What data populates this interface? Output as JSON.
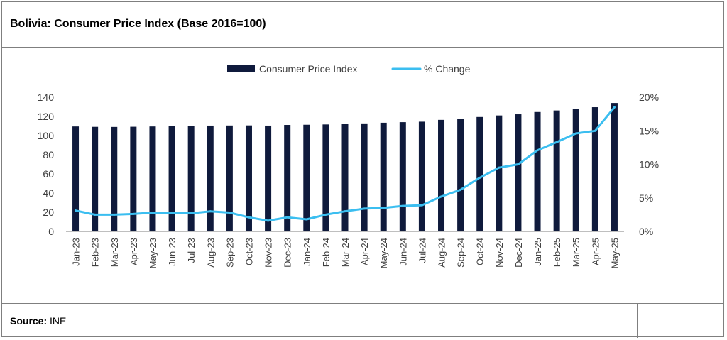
{
  "header": {
    "title": "Bolivia: Consumer Price Index (Base 2016=100)"
  },
  "footer": {
    "source_label": "Source:",
    "source_value": " INE"
  },
  "chart_data": {
    "type": "bar",
    "categories": [
      "Jan-23",
      "Feb-23",
      "Mar-23",
      "Apr-23",
      "May-23",
      "Jun-23",
      "Jul-23",
      "Aug-23",
      "Sep-23",
      "Oct-23",
      "Nov-23",
      "Dec-23",
      "Jan-24",
      "Feb-24",
      "Mar-24",
      "Apr-24",
      "May-24",
      "Jun-24",
      "Jul-24",
      "Aug-24",
      "Sep-24",
      "Oct-24",
      "Nov-24",
      "Dec-24",
      "Jan-25",
      "Feb-25",
      "Mar-25",
      "Apr-25",
      "May-25"
    ],
    "series": [
      {
        "name": "Consumer Price Index",
        "type": "bar",
        "axis": "left",
        "color": "#0f1a3c",
        "values": [
          109.5,
          109.1,
          109.0,
          109.2,
          109.5,
          109.8,
          110.1,
          110.4,
          110.5,
          110.6,
          110.4,
          111.1,
          111.3,
          111.6,
          112.1,
          112.7,
          113.4,
          114.0,
          114.5,
          116.4,
          117.3,
          119.4,
          121.0,
          122.2,
          124.6,
          126.2,
          127.9,
          129.6,
          134.0
        ]
      },
      {
        "name": "% Change",
        "type": "line",
        "axis": "right",
        "color": "#3bbef0",
        "values": [
          3.1,
          2.5,
          2.5,
          2.6,
          2.8,
          2.7,
          2.7,
          3.0,
          2.8,
          2.1,
          1.6,
          2.1,
          1.8,
          2.5,
          3.0,
          3.4,
          3.5,
          3.8,
          3.9,
          5.2,
          6.2,
          8.0,
          9.5,
          10.0,
          12.1,
          13.3,
          14.6,
          15.0,
          18.5
        ]
      }
    ],
    "y_left": {
      "min": 0,
      "max": 140,
      "ticks": [
        0,
        20,
        40,
        60,
        80,
        100,
        120,
        140
      ],
      "tick_labels": [
        "0",
        "20",
        "40",
        "60",
        "80",
        "100",
        "120",
        "140"
      ]
    },
    "y_right": {
      "min": 0,
      "max": 20,
      "ticks": [
        0,
        5,
        10,
        15,
        20
      ],
      "tick_labels": [
        "0%",
        "5%",
        "10%",
        "15%",
        "20%"
      ]
    },
    "legend_position": "top-center",
    "grid": false,
    "xlabel": "",
    "ylabel": ""
  }
}
